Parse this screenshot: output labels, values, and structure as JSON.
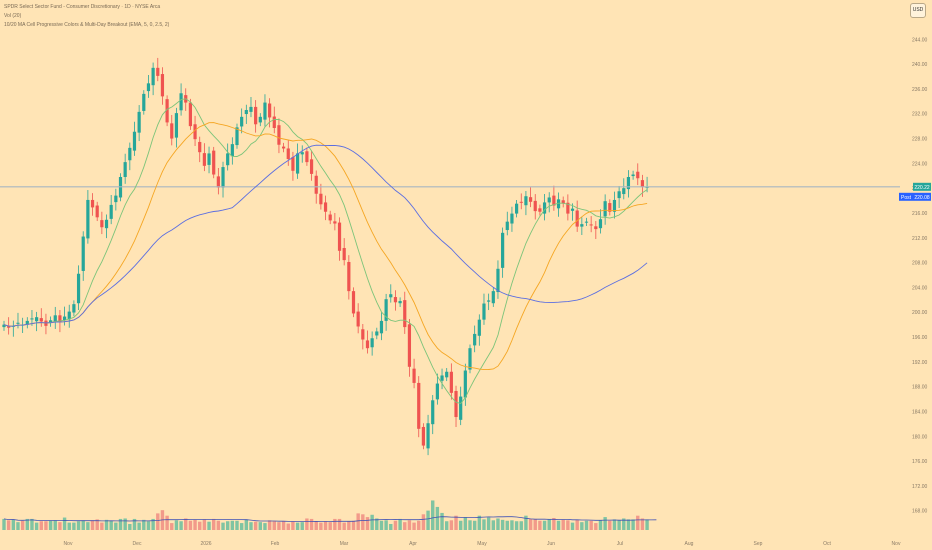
{
  "header": {
    "symbol_line": "SPDR Select Sector Fund - Consumer Discretionary · 1D · NYSE Arca",
    "volume_line": "Vol (20)",
    "indicator_line": "10/20 MA Cell Progressive Colors & Multi-Day Breakout (EMA, 5, 0, 2.5, 2)",
    "currency_button": "USD"
  },
  "price_badges": {
    "last_price": "220.22",
    "post_label": "Post",
    "post_price": "220.08",
    "last_color": "#26a69a",
    "post_color": "#2962ff"
  },
  "colors": {
    "background": "#ffe4b5",
    "up": "#26a69a",
    "down": "#ef5350",
    "vol_up": "#7fc4a2",
    "vol_down": "#f29a8a",
    "ma_fast": "#7cc47a",
    "ma_mid": "#f5a623",
    "ma_slow": "#5b6ee1",
    "vol_ma": "#3f51b5",
    "last_line": "#a8b6c2"
  },
  "chart_data": {
    "type": "candlestick",
    "y_ticks": [
      "244.00",
      "240.00",
      "236.00",
      "232.00",
      "228.00",
      "224.00",
      "220.00",
      "216.00",
      "212.00",
      "208.00",
      "204.00",
      "200.00",
      "196.00",
      "192.00",
      "188.00",
      "184.00",
      "180.00",
      "176.00",
      "172.00",
      "168.00"
    ],
    "x_ticks": [
      "Nov",
      "Dec",
      "2026",
      "Feb",
      "Mar",
      "Apr",
      "May",
      "Jun",
      "Jul",
      "Aug",
      "Sep",
      "Oct",
      "Nov"
    ],
    "ylim": [
      166.5,
      245.5
    ],
    "last_price": 220.22,
    "closes": [
      198,
      197.5,
      197.8,
      198.3,
      198,
      198.6,
      199,
      199.2,
      198.5,
      197.8,
      198.7,
      199.5,
      198.4,
      199.3,
      200.1,
      201.3,
      206.2,
      212.2,
      218.1,
      216.9,
      215.3,
      213.7,
      214.9,
      217.3,
      218.8,
      221.8,
      224.2,
      226.5,
      229.1,
      232.3,
      235.2,
      236.9,
      239.4,
      238.1,
      234.8,
      230.6,
      228,
      232.1,
      235.3,
      233.8,
      230,
      227.9,
      225.8,
      223.6,
      225.6,
      222.2,
      220.1,
      223.4,
      225.6,
      227.1,
      229.8,
      231.5,
      232.6,
      233.1,
      230.3,
      231.5,
      233.8,
      231.4,
      229.7,
      227,
      226.4,
      224.7,
      222.8,
      225.6,
      225.8,
      224.2,
      222.3,
      219.1,
      217.4,
      216.2,
      214.8,
      214.3,
      209.9,
      208.4,
      203.4,
      199.8,
      197.7,
      195.6,
      194.2,
      195.8,
      196.9,
      198.6,
      202.1,
      202.9,
      201.6,
      201.8,
      197.6,
      191.2,
      188.6,
      181.2,
      178.5,
      182.1,
      185.8,
      188.5,
      189.8,
      190.4,
      187,
      183.1,
      186.4,
      190.6,
      194.2,
      196.5,
      198.8,
      201.4,
      201.9,
      203.4,
      207,
      212.8,
      214.6,
      215.9,
      217.5,
      217.7,
      218.7,
      217.8,
      216.3,
      216.2,
      217.7,
      218.5,
      217.2,
      218.2,
      217.5,
      215.9,
      216.7,
      213.8,
      214.2,
      214.6,
      214,
      213.4,
      215,
      217.9,
      216.2,
      218.1,
      219.5,
      220,
      221.8,
      222.2,
      221.6,
      220.2,
      220.22
    ],
    "volume": [
      24,
      21,
      23,
      17,
      20,
      24,
      24,
      16,
      19,
      19,
      20,
      21,
      17,
      27,
      16,
      16,
      19,
      21,
      17,
      21,
      23,
      16,
      22,
      20,
      16,
      24,
      25,
      13,
      24,
      16,
      22,
      19,
      24,
      36,
      43,
      31,
      15,
      21,
      19,
      25,
      20,
      22,
      18,
      23,
      18,
      24,
      20,
      16,
      19,
      20,
      20,
      15,
      23,
      17,
      18,
      17,
      15,
      21,
      19,
      17,
      19,
      14,
      18,
      16,
      17,
      25,
      24,
      19,
      16,
      19,
      17,
      24,
      24,
      16,
      19,
      20,
      36,
      34,
      28,
      33,
      25,
      20,
      21,
      13,
      20,
      24,
      17,
      21,
      16,
      20,
      34,
      42,
      64,
      50,
      37,
      19,
      21,
      31,
      20,
      28,
      21,
      20,
      31,
      23,
      27,
      21,
      25,
      22,
      20,
      21,
      19,
      19,
      31,
      24,
      23,
      20,
      20,
      24,
      26,
      20,
      22,
      21,
      16,
      22,
      17,
      20,
      20,
      15,
      21,
      28,
      20,
      23,
      21,
      25,
      23,
      23,
      31,
      25,
      23,
      23,
      24
    ],
    "vol_ylim": [
      0,
      130
    ],
    "series": [
      {
        "key": "ma_fast",
        "period": 10
      },
      {
        "key": "ma_mid",
        "period": 20
      },
      {
        "key": "ma_slow",
        "period": 50
      }
    ]
  }
}
